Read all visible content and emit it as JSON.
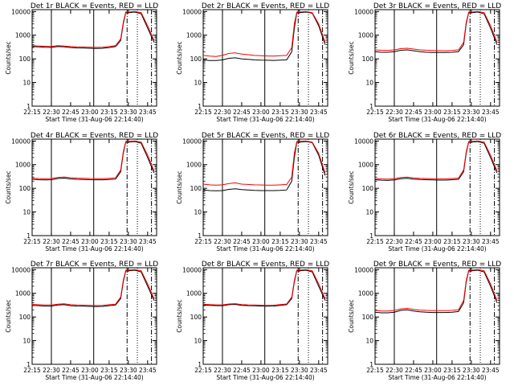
{
  "figure": {
    "xlabel": "Start Time (31-Aug-06 22:14:40)",
    "ylabel": "Counts/sec",
    "x_tick_labels": [
      "22:15",
      "22:30",
      "22:45",
      "23:00",
      "23:15",
      "23:30",
      "23:45"
    ],
    "y_tick_labels": [
      "1",
      "10",
      "100",
      "1000",
      "10000"
    ],
    "colors": {
      "events": "#000000",
      "lld": "#ff0000",
      "axes": "#000000",
      "background": "#ffffff"
    }
  },
  "chart_data": [
    {
      "type": "line",
      "title": "Det 1r BLACK = Events, RED = LLD",
      "xlabel": "Start Time (31-Aug-06 22:14:40)",
      "ylabel": "Counts/sec",
      "y_scale": "log",
      "xlim": [
        "22:15",
        "23:52"
      ],
      "ylim": [
        1,
        12000
      ],
      "x": [
        "22:15",
        "22:20",
        "22:25",
        "22:30",
        "22:35",
        "22:40",
        "22:45",
        "22:50",
        "22:55",
        "23:00",
        "23:05",
        "23:10",
        "23:15",
        "23:20",
        "23:24",
        "23:26",
        "23:28",
        "23:30",
        "23:35",
        "23:40",
        "23:45",
        "23:50"
      ],
      "series": [
        {
          "name": "Events",
          "values": [
            330,
            320,
            310,
            305,
            330,
            320,
            300,
            290,
            285,
            280,
            275,
            280,
            300,
            330,
            600,
            3000,
            9000,
            9000,
            9500,
            8000,
            2000,
            500
          ]
        },
        {
          "name": "LLD",
          "values": [
            360,
            350,
            340,
            335,
            360,
            350,
            330,
            320,
            315,
            310,
            305,
            310,
            330,
            360,
            700,
            3500,
            9500,
            9500,
            10000,
            9000,
            2500,
            600
          ]
        }
      ],
      "vlines": [
        {
          "x": "22:30",
          "style": "solid"
        },
        {
          "x": "23:03",
          "style": "solid"
        },
        {
          "x": "23:29",
          "style": "dashdot"
        },
        {
          "x": "23:37",
          "style": "dotted"
        },
        {
          "x": "23:48",
          "style": "dashdot"
        }
      ]
    },
    {
      "type": "line",
      "title": "Det 2r BLACK = Events, RED = LLD",
      "xlabel": "Start Time (31-Aug-06 22:14:40)",
      "ylabel": "Counts/sec",
      "y_scale": "log",
      "xlim": [
        "22:15",
        "23:52"
      ],
      "ylim": [
        1,
        12000
      ],
      "x": [
        "22:15",
        "22:20",
        "22:25",
        "22:30",
        "22:35",
        "22:40",
        "22:45",
        "22:50",
        "22:55",
        "23:00",
        "23:05",
        "23:10",
        "23:15",
        "23:20",
        "23:24",
        "23:26",
        "23:28",
        "23:30",
        "23:35",
        "23:40",
        "23:45",
        "23:50"
      ],
      "series": [
        {
          "name": "Events",
          "values": [
            90,
            85,
            85,
            90,
            105,
            110,
            100,
            95,
            90,
            88,
            87,
            86,
            88,
            90,
            200,
            2000,
            9000,
            9000,
            9500,
            8500,
            2500,
            400
          ]
        },
        {
          "name": "LLD",
          "values": [
            140,
            130,
            125,
            140,
            170,
            180,
            160,
            150,
            140,
            135,
            132,
            130,
            135,
            140,
            300,
            3000,
            9500,
            9500,
            10000,
            9000,
            3000,
            500
          ]
        }
      ],
      "vlines": [
        {
          "x": "22:30",
          "style": "solid"
        },
        {
          "x": "23:03",
          "style": "solid"
        },
        {
          "x": "23:29",
          "style": "dashdot"
        },
        {
          "x": "23:37",
          "style": "dotted"
        },
        {
          "x": "23:48",
          "style": "dashdot"
        }
      ]
    },
    {
      "type": "line",
      "title": "Det 3r BLACK = Events, RED = LLD",
      "xlabel": "Start Time (31-Aug-06 22:14:40)",
      "ylabel": "Counts/sec",
      "y_scale": "log",
      "xlim": [
        "22:15",
        "23:52"
      ],
      "ylim": [
        1,
        12000
      ],
      "x": [
        "22:15",
        "22:20",
        "22:25",
        "22:30",
        "22:35",
        "22:40",
        "22:45",
        "22:50",
        "22:55",
        "23:00",
        "23:05",
        "23:10",
        "23:15",
        "23:20",
        "23:24",
        "23:26",
        "23:28",
        "23:30",
        "23:35",
        "23:40",
        "23:45",
        "23:50"
      ],
      "series": [
        {
          "name": "Events",
          "values": [
            200,
            190,
            190,
            200,
            230,
            240,
            220,
            200,
            190,
            185,
            185,
            185,
            190,
            200,
            400,
            3000,
            9000,
            9000,
            9500,
            8000,
            2000,
            400
          ]
        },
        {
          "name": "LLD",
          "values": [
            240,
            230,
            225,
            240,
            270,
            280,
            260,
            240,
            230,
            225,
            222,
            220,
            225,
            240,
            500,
            3500,
            9500,
            9500,
            10000,
            9000,
            2500,
            500
          ]
        }
      ],
      "vlines": [
        {
          "x": "22:30",
          "style": "solid"
        },
        {
          "x": "23:03",
          "style": "solid"
        },
        {
          "x": "23:29",
          "style": "dashdot"
        },
        {
          "x": "23:37",
          "style": "dotted"
        },
        {
          "x": "23:48",
          "style": "dashdot"
        }
      ]
    },
    {
      "type": "line",
      "title": "Det 4r BLACK = Events, RED = LLD",
      "xlabel": "Start Time (31-Aug-06 22:14:40)",
      "ylabel": "Counts/sec",
      "y_scale": "log",
      "xlim": [
        "22:15",
        "23:52"
      ],
      "ylim": [
        1,
        12000
      ],
      "x": [
        "22:15",
        "22:20",
        "22:25",
        "22:30",
        "22:35",
        "22:40",
        "22:45",
        "22:50",
        "22:55",
        "23:00",
        "23:05",
        "23:10",
        "23:15",
        "23:20",
        "23:24",
        "23:26",
        "23:28",
        "23:30",
        "23:35",
        "23:40",
        "23:45",
        "23:50"
      ],
      "series": [
        {
          "name": "Events",
          "values": [
            240,
            230,
            225,
            230,
            260,
            270,
            250,
            240,
            235,
            230,
            228,
            228,
            235,
            245,
            500,
            3000,
            9000,
            9000,
            9500,
            8000,
            2000,
            450
          ]
        },
        {
          "name": "LLD",
          "values": [
            270,
            260,
            255,
            260,
            290,
            300,
            280,
            270,
            265,
            260,
            258,
            258,
            265,
            275,
            600,
            3500,
            9500,
            9500,
            10000,
            9000,
            2500,
            550
          ]
        }
      ],
      "vlines": [
        {
          "x": "22:30",
          "style": "solid"
        },
        {
          "x": "23:03",
          "style": "solid"
        },
        {
          "x": "23:29",
          "style": "dashdot"
        },
        {
          "x": "23:37",
          "style": "dotted"
        },
        {
          "x": "23:48",
          "style": "dashdot"
        }
      ]
    },
    {
      "type": "line",
      "title": "Det 5r BLACK = Events, RED = LLD",
      "xlabel": "Start Time (31-Aug-06 22:14:40)",
      "ylabel": "Counts/sec",
      "y_scale": "log",
      "xlim": [
        "22:15",
        "23:52"
      ],
      "ylim": [
        1,
        12000
      ],
      "x": [
        "22:15",
        "22:20",
        "22:25",
        "22:30",
        "22:35",
        "22:40",
        "22:45",
        "22:50",
        "22:55",
        "23:00",
        "23:05",
        "23:10",
        "23:15",
        "23:20",
        "23:24",
        "23:26",
        "23:28",
        "23:30",
        "23:35",
        "23:40",
        "23:45",
        "23:50"
      ],
      "series": [
        {
          "name": "Events",
          "values": [
            85,
            80,
            78,
            80,
            90,
            95,
            88,
            85,
            82,
            80,
            80,
            80,
            82,
            85,
            200,
            2000,
            9000,
            9000,
            9500,
            8500,
            2500,
            350
          ]
        },
        {
          "name": "LLD",
          "values": [
            150,
            140,
            135,
            140,
            160,
            170,
            150,
            145,
            140,
            138,
            136,
            135,
            140,
            145,
            300,
            3000,
            9500,
            9500,
            10000,
            9000,
            3000,
            450
          ]
        }
      ],
      "vlines": [
        {
          "x": "22:30",
          "style": "solid"
        },
        {
          "x": "23:03",
          "style": "solid"
        },
        {
          "x": "23:29",
          "style": "dashdot"
        },
        {
          "x": "23:37",
          "style": "dotted"
        },
        {
          "x": "23:48",
          "style": "dashdot"
        }
      ]
    },
    {
      "type": "line",
      "title": "Det 6r BLACK = Events, RED = LLD",
      "xlabel": "Start Time (31-Aug-06 22:14:40)",
      "ylabel": "Counts/sec",
      "y_scale": "log",
      "xlim": [
        "22:15",
        "23:52"
      ],
      "ylim": [
        1,
        12000
      ],
      "x": [
        "22:15",
        "22:20",
        "22:25",
        "22:30",
        "22:35",
        "22:40",
        "22:45",
        "22:50",
        "22:55",
        "23:00",
        "23:05",
        "23:10",
        "23:15",
        "23:20",
        "23:24",
        "23:26",
        "23:28",
        "23:30",
        "23:35",
        "23:40",
        "23:45",
        "23:50"
      ],
      "series": [
        {
          "name": "Events",
          "values": [
            230,
            220,
            215,
            225,
            255,
            265,
            245,
            235,
            230,
            225,
            222,
            222,
            230,
            240,
            500,
            3000,
            9000,
            9000,
            9500,
            8000,
            2000,
            450
          ]
        },
        {
          "name": "LLD",
          "values": [
            260,
            250,
            245,
            255,
            285,
            295,
            275,
            265,
            260,
            255,
            252,
            252,
            260,
            270,
            600,
            3500,
            9500,
            9500,
            10000,
            9000,
            2500,
            550
          ]
        }
      ],
      "vlines": [
        {
          "x": "22:30",
          "style": "solid"
        },
        {
          "x": "23:03",
          "style": "solid"
        },
        {
          "x": "23:29",
          "style": "dashdot"
        },
        {
          "x": "23:37",
          "style": "dotted"
        },
        {
          "x": "23:48",
          "style": "dashdot"
        }
      ]
    },
    {
      "type": "line",
      "title": "Det 7r BLACK = Events, RED = LLD",
      "xlabel": "Start Time (31-Aug-06 22:14:40)",
      "ylabel": "Counts/sec",
      "y_scale": "log",
      "xlim": [
        "22:15",
        "23:52"
      ],
      "ylim": [
        1,
        12000
      ],
      "x": [
        "22:15",
        "22:20",
        "22:25",
        "22:30",
        "22:35",
        "22:40",
        "22:45",
        "22:50",
        "22:55",
        "23:00",
        "23:05",
        "23:10",
        "23:15",
        "23:20",
        "23:24",
        "23:26",
        "23:28",
        "23:30",
        "23:35",
        "23:40",
        "23:45",
        "23:50"
      ],
      "series": [
        {
          "name": "Events",
          "values": [
            310,
            300,
            290,
            290,
            320,
            330,
            300,
            290,
            285,
            280,
            275,
            280,
            300,
            320,
            600,
            3000,
            9000,
            9000,
            9500,
            8000,
            2000,
            500
          ]
        },
        {
          "name": "LLD",
          "values": [
            340,
            330,
            320,
            320,
            350,
            360,
            330,
            320,
            315,
            310,
            305,
            310,
            330,
            350,
            700,
            3500,
            9500,
            9500,
            10000,
            9000,
            2500,
            600
          ]
        }
      ],
      "vlines": [
        {
          "x": "22:30",
          "style": "solid"
        },
        {
          "x": "23:03",
          "style": "solid"
        },
        {
          "x": "23:29",
          "style": "dashdot"
        },
        {
          "x": "23:37",
          "style": "dotted"
        },
        {
          "x": "23:48",
          "style": "dashdot"
        }
      ]
    },
    {
      "type": "line",
      "title": "Det 8r BLACK = Events, RED = LLD",
      "xlabel": "Start Time (31-Aug-06 22:14:40)",
      "ylabel": "Counts/sec",
      "y_scale": "log",
      "xlim": [
        "22:15",
        "23:52"
      ],
      "ylim": [
        1,
        12000
      ],
      "x": [
        "22:15",
        "22:20",
        "22:25",
        "22:30",
        "22:35",
        "22:40",
        "22:45",
        "22:50",
        "22:55",
        "23:00",
        "23:05",
        "23:10",
        "23:15",
        "23:20",
        "23:24",
        "23:26",
        "23:28",
        "23:30",
        "23:35",
        "23:40",
        "23:45",
        "23:50"
      ],
      "series": [
        {
          "name": "Events",
          "values": [
            320,
            310,
            300,
            300,
            330,
            340,
            310,
            300,
            295,
            290,
            285,
            290,
            310,
            330,
            600,
            3000,
            9000,
            9000,
            9500,
            8000,
            2000,
            500
          ]
        },
        {
          "name": "LLD",
          "values": [
            345,
            335,
            325,
            325,
            355,
            365,
            335,
            325,
            320,
            315,
            310,
            315,
            335,
            355,
            700,
            3500,
            9500,
            9500,
            10000,
            9000,
            2500,
            600
          ]
        }
      ],
      "vlines": [
        {
          "x": "22:30",
          "style": "solid"
        },
        {
          "x": "23:03",
          "style": "solid"
        },
        {
          "x": "23:29",
          "style": "dashdot"
        },
        {
          "x": "23:37",
          "style": "dotted"
        },
        {
          "x": "23:48",
          "style": "dashdot"
        }
      ]
    },
    {
      "type": "line",
      "title": "Det 9r BLACK = Events, RED = LLD",
      "xlabel": "Start Time (31-Aug-06 22:14:40)",
      "ylabel": "Counts/sec",
      "y_scale": "log",
      "xlim": [
        "22:15",
        "23:52"
      ],
      "ylim": [
        1,
        12000
      ],
      "x": [
        "22:15",
        "22:20",
        "22:25",
        "22:30",
        "22:35",
        "22:40",
        "22:45",
        "22:50",
        "22:55",
        "23:00",
        "23:05",
        "23:10",
        "23:15",
        "23:20",
        "23:24",
        "23:26",
        "23:28",
        "23:30",
        "23:35",
        "23:40",
        "23:45",
        "23:50"
      ],
      "series": [
        {
          "name": "Events",
          "values": [
            160,
            150,
            150,
            160,
            190,
            200,
            180,
            165,
            160,
            155,
            155,
            155,
            160,
            170,
            400,
            3000,
            9000,
            9000,
            9500,
            8000,
            2000,
            400
          ]
        },
        {
          "name": "LLD",
          "values": [
            190,
            180,
            180,
            190,
            220,
            230,
            210,
            195,
            190,
            185,
            185,
            185,
            190,
            200,
            500,
            3500,
            9500,
            9500,
            10000,
            9000,
            2500,
            500
          ]
        }
      ],
      "vlines": [
        {
          "x": "22:30",
          "style": "solid"
        },
        {
          "x": "23:03",
          "style": "solid"
        },
        {
          "x": "23:29",
          "style": "dashdot"
        },
        {
          "x": "23:37",
          "style": "dotted"
        },
        {
          "x": "23:48",
          "style": "dashdot"
        }
      ]
    }
  ]
}
